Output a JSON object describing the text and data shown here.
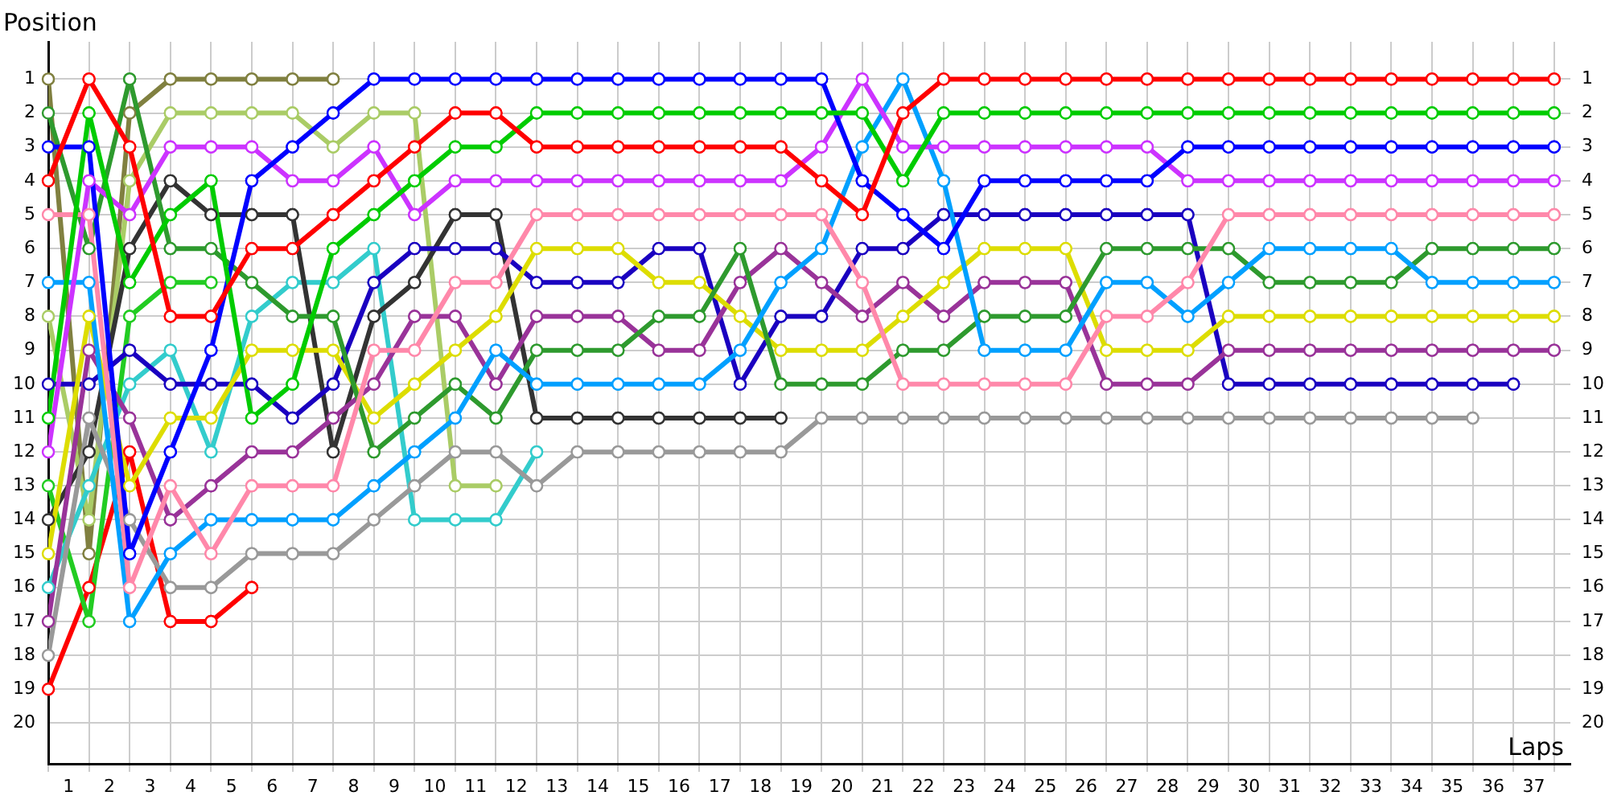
{
  "chart_data": {
    "type": "line",
    "xlabel": "Laps",
    "ylabel": "Position",
    "marker": "circle",
    "grid": true,
    "x": [
      0,
      1,
      2,
      3,
      4,
      5,
      6,
      7,
      8,
      9,
      10,
      11,
      12,
      13,
      14,
      15,
      16,
      17,
      18,
      19,
      20,
      21,
      22,
      23,
      24,
      25,
      26,
      27,
      28,
      29,
      30,
      31,
      32,
      33,
      34,
      35,
      36,
      37
    ],
    "xlim": [
      0,
      37.4
    ],
    "xticks": [
      {
        "value": 0,
        "label": null
      },
      {
        "value": 0.5,
        "label": "1"
      },
      {
        "value": 1,
        "label": null
      },
      {
        "value": 1.5,
        "label": "2"
      },
      {
        "value": 2,
        "label": null
      },
      {
        "value": 2.5,
        "label": "3"
      },
      {
        "value": 3,
        "label": null
      },
      {
        "value": 3.5,
        "label": "4"
      },
      {
        "value": 4,
        "label": null
      },
      {
        "value": 4.5,
        "label": "5"
      },
      {
        "value": 5,
        "label": null
      },
      {
        "value": 5.5,
        "label": "6"
      },
      {
        "value": 6,
        "label": null
      },
      {
        "value": 6.5,
        "label": "7"
      },
      {
        "value": 7,
        "label": null
      },
      {
        "value": 7.5,
        "label": "8"
      },
      {
        "value": 8,
        "label": null
      },
      {
        "value": 8.5,
        "label": "9"
      },
      {
        "value": 9,
        "label": null
      },
      {
        "value": 9.5,
        "label": "10"
      },
      {
        "value": 10,
        "label": null
      },
      {
        "value": 10.5,
        "label": "11"
      },
      {
        "value": 11,
        "label": null
      },
      {
        "value": 11.5,
        "label": "12"
      },
      {
        "value": 12,
        "label": null
      },
      {
        "value": 12.5,
        "label": "13"
      },
      {
        "value": 13,
        "label": null
      },
      {
        "value": 13.5,
        "label": "14"
      },
      {
        "value": 14,
        "label": null
      },
      {
        "value": 14.5,
        "label": "15"
      },
      {
        "value": 15,
        "label": null
      },
      {
        "value": 15.5,
        "label": "16"
      },
      {
        "value": 16,
        "label": null
      },
      {
        "value": 16.5,
        "label": "17"
      },
      {
        "value": 17,
        "label": null
      },
      {
        "value": 17.5,
        "label": "18"
      },
      {
        "value": 18,
        "label": null
      },
      {
        "value": 18.5,
        "label": "19"
      },
      {
        "value": 19,
        "label": null
      },
      {
        "value": 19.5,
        "label": "20"
      },
      {
        "value": 20,
        "label": null
      },
      {
        "value": 20.5,
        "label": "21"
      },
      {
        "value": 21,
        "label": null
      },
      {
        "value": 21.5,
        "label": "22"
      },
      {
        "value": 22,
        "label": null
      },
      {
        "value": 22.5,
        "label": "23"
      },
      {
        "value": 23,
        "label": null
      },
      {
        "value": 23.5,
        "label": "24"
      },
      {
        "value": 24,
        "label": null
      },
      {
        "value": 24.5,
        "label": "25"
      },
      {
        "value": 25,
        "label": null
      },
      {
        "value": 25.5,
        "label": "26"
      },
      {
        "value": 26,
        "label": null
      },
      {
        "value": 26.5,
        "label": "27"
      },
      {
        "value": 27,
        "label": null
      },
      {
        "value": 27.5,
        "label": "28"
      },
      {
        "value": 28,
        "label": null
      },
      {
        "value": 28.5,
        "label": "29"
      },
      {
        "value": 29,
        "label": null
      },
      {
        "value": 29.5,
        "label": "30"
      },
      {
        "value": 30,
        "label": null
      },
      {
        "value": 30.5,
        "label": "31"
      },
      {
        "value": 31,
        "label": null
      },
      {
        "value": 31.5,
        "label": "32"
      },
      {
        "value": 32,
        "label": null
      },
      {
        "value": 32.5,
        "label": "33"
      },
      {
        "value": 33,
        "label": null
      },
      {
        "value": 33.5,
        "label": "34"
      },
      {
        "value": 34,
        "label": null
      },
      {
        "value": 34.5,
        "label": "35"
      },
      {
        "value": 35,
        "label": null
      },
      {
        "value": 35.5,
        "label": "36"
      },
      {
        "value": 36,
        "label": null
      },
      {
        "value": 36.5,
        "label": "37"
      },
      {
        "value": 37,
        "label": null
      }
    ],
    "ylim": [
      21.2,
      -0.1
    ],
    "yticks": [
      1,
      2,
      3,
      4,
      5,
      6,
      7,
      8,
      9,
      10,
      11,
      12,
      13,
      14,
      15,
      16,
      17,
      18,
      19,
      20
    ],
    "y2lim": [
      21.2,
      -0.1
    ],
    "y2ticks": [
      1,
      2,
      3,
      4,
      5,
      6,
      7,
      8,
      9,
      10,
      11,
      12,
      13,
      14,
      15,
      16,
      17,
      18,
      19,
      20
    ],
    "series": [
      {
        "color": "#ff0000",
        "values": [
          4,
          1,
          3,
          8,
          8,
          6,
          6,
          5,
          4,
          3,
          2,
          2,
          3,
          3,
          3,
          3,
          3,
          3,
          3,
          4,
          5,
          2,
          1,
          1,
          1,
          1,
          1,
          1,
          1,
          1,
          1,
          1,
          1,
          1,
          1,
          1,
          1,
          1
        ]
      },
      {
        "color": "#00cc00",
        "values": [
          11,
          2,
          7,
          5,
          4,
          11,
          10,
          6,
          5,
          4,
          3,
          3,
          2,
          2,
          2,
          2,
          2,
          2,
          2,
          2,
          2,
          4,
          2,
          2,
          2,
          2,
          2,
          2,
          2,
          2,
          2,
          2,
          2,
          2,
          2,
          2,
          2,
          2
        ]
      },
      {
        "color": "#0000ff",
        "values": [
          3,
          3,
          15,
          12,
          9,
          4,
          3,
          2,
          1,
          1,
          1,
          1,
          1,
          1,
          1,
          1,
          1,
          1,
          1,
          1,
          4,
          5,
          6,
          4,
          4,
          4,
          4,
          4,
          3,
          3,
          3,
          3,
          3,
          3,
          3,
          3,
          3,
          3
        ]
      },
      {
        "color": "#cc33ff",
        "values": [
          12,
          4,
          5,
          3,
          3,
          3,
          4,
          4,
          3,
          5,
          4,
          4,
          4,
          4,
          4,
          4,
          4,
          4,
          4,
          3,
          1,
          3,
          3,
          3,
          3,
          3,
          3,
          3,
          4,
          4,
          4,
          4,
          4,
          4,
          4,
          4,
          4,
          4
        ]
      },
      {
        "color": "#ff88aa",
        "values": [
          5,
          5,
          16,
          13,
          15,
          13,
          13,
          13,
          9,
          9,
          7,
          7,
          5,
          5,
          5,
          5,
          5,
          5,
          5,
          5,
          7,
          10,
          10,
          10,
          10,
          10,
          8,
          8,
          7,
          5,
          5,
          5,
          5,
          5,
          5,
          5,
          5,
          5
        ]
      },
      {
        "color": "#00a0ff",
        "values": [
          7,
          7,
          17,
          15,
          14,
          14,
          14,
          14,
          13,
          12,
          11,
          9,
          10,
          10,
          10,
          10,
          10,
          9,
          7,
          6,
          3,
          1,
          4,
          9,
          9,
          9,
          7,
          7,
          8,
          7,
          6,
          6,
          6,
          6,
          7,
          7,
          7,
          7
        ]
      },
      {
        "color": "#2e9a2e",
        "values": [
          2,
          6,
          1,
          6,
          6,
          7,
          8,
          8,
          12,
          11,
          10,
          11,
          9,
          9,
          9,
          8,
          8,
          6,
          10,
          10,
          10,
          9,
          9,
          8,
          8,
          8,
          6,
          6,
          6,
          6,
          7,
          7,
          7,
          7,
          6,
          6,
          6,
          6
        ]
      },
      {
        "color": "#dddd00",
        "values": [
          15,
          8,
          13,
          11,
          11,
          9,
          9,
          9,
          11,
          10,
          9,
          8,
          6,
          6,
          6,
          7,
          7,
          8,
          9,
          9,
          9,
          8,
          7,
          6,
          6,
          6,
          9,
          9,
          9,
          8,
          8,
          8,
          8,
          8,
          8,
          8,
          8,
          8
        ]
      },
      {
        "color": "#993399",
        "values": [
          17,
          9,
          11,
          14,
          13,
          12,
          12,
          11,
          10,
          8,
          8,
          10,
          8,
          8,
          8,
          9,
          9,
          7,
          6,
          7,
          8,
          7,
          8,
          7,
          7,
          7,
          10,
          10,
          10,
          9,
          9,
          9,
          9,
          9,
          9,
          9,
          9,
          9
        ]
      },
      {
        "color": "#1a00c0",
        "values": [
          10,
          10,
          9,
          10,
          10,
          10,
          11,
          10,
          7,
          6,
          6,
          6,
          7,
          7,
          7,
          6,
          6,
          10,
          8,
          8,
          6,
          6,
          5,
          5,
          5,
          5,
          5,
          5,
          5,
          10,
          10,
          10,
          10,
          10,
          10,
          10,
          10,
          null
        ]
      },
      {
        "color": "#999999",
        "values": [
          18,
          11,
          14,
          16,
          16,
          15,
          15,
          15,
          14,
          13,
          12,
          12,
          13,
          12,
          12,
          12,
          12,
          12,
          12,
          11,
          11,
          11,
          11,
          11,
          11,
          11,
          11,
          11,
          11,
          11,
          11,
          11,
          11,
          11,
          11,
          11,
          null,
          null
        ]
      },
      {
        "color": "#333333",
        "values": [
          14,
          12,
          6,
          4,
          5,
          5,
          5,
          12,
          8,
          7,
          5,
          5,
          11,
          11,
          11,
          11,
          11,
          11,
          11,
          null,
          null,
          null,
          null,
          null,
          null,
          null,
          null,
          null,
          null,
          null,
          null,
          null,
          null,
          null,
          null,
          null,
          null,
          null
        ]
      },
      {
        "color": "#33cccc",
        "values": [
          16,
          13,
          10,
          9,
          12,
          8,
          7,
          7,
          6,
          14,
          14,
          14,
          12,
          null,
          null,
          null,
          null,
          null,
          null,
          null,
          null,
          null,
          null,
          null,
          null,
          null,
          null,
          null,
          null,
          null,
          null,
          null,
          null,
          null,
          null,
          null,
          null,
          null
        ]
      },
      {
        "color": "#aacc66",
        "values": [
          8,
          14,
          4,
          2,
          2,
          2,
          2,
          3,
          2,
          2,
          13,
          13,
          null,
          null,
          null,
          null,
          null,
          null,
          null,
          null,
          null,
          null,
          null,
          null,
          null,
          null,
          null,
          null,
          null,
          null,
          null,
          null,
          null,
          null,
          null,
          null,
          null,
          null
        ]
      },
      {
        "color": "#808040",
        "values": [
          1,
          15,
          2,
          1,
          1,
          1,
          1,
          1,
          null,
          null,
          null,
          null,
          null,
          null,
          null,
          null,
          null,
          null,
          null,
          null,
          null,
          null,
          null,
          null,
          null,
          null,
          null,
          null,
          null,
          null,
          null,
          null,
          null,
          null,
          null,
          null,
          null,
          null
        ]
      },
      {
        "color": "#22cc22",
        "values": [
          13,
          17,
          8,
          7,
          7,
          null,
          null,
          null,
          null,
          null,
          null,
          null,
          null,
          null,
          null,
          null,
          null,
          null,
          null,
          null,
          null,
          null,
          null,
          null,
          null,
          null,
          null,
          null,
          null,
          null,
          null,
          null,
          null,
          null,
          null,
          null,
          null,
          null
        ]
      },
      {
        "color": "#ff0000",
        "values": [
          19,
          16,
          12,
          17,
          17,
          16,
          null,
          null,
          null,
          null,
          null,
          null,
          null,
          null,
          null,
          null,
          null,
          null,
          null,
          null,
          null,
          null,
          null,
          null,
          null,
          null,
          null,
          null,
          null,
          null,
          null,
          null,
          null,
          null,
          null,
          null,
          null,
          null
        ]
      }
    ]
  }
}
